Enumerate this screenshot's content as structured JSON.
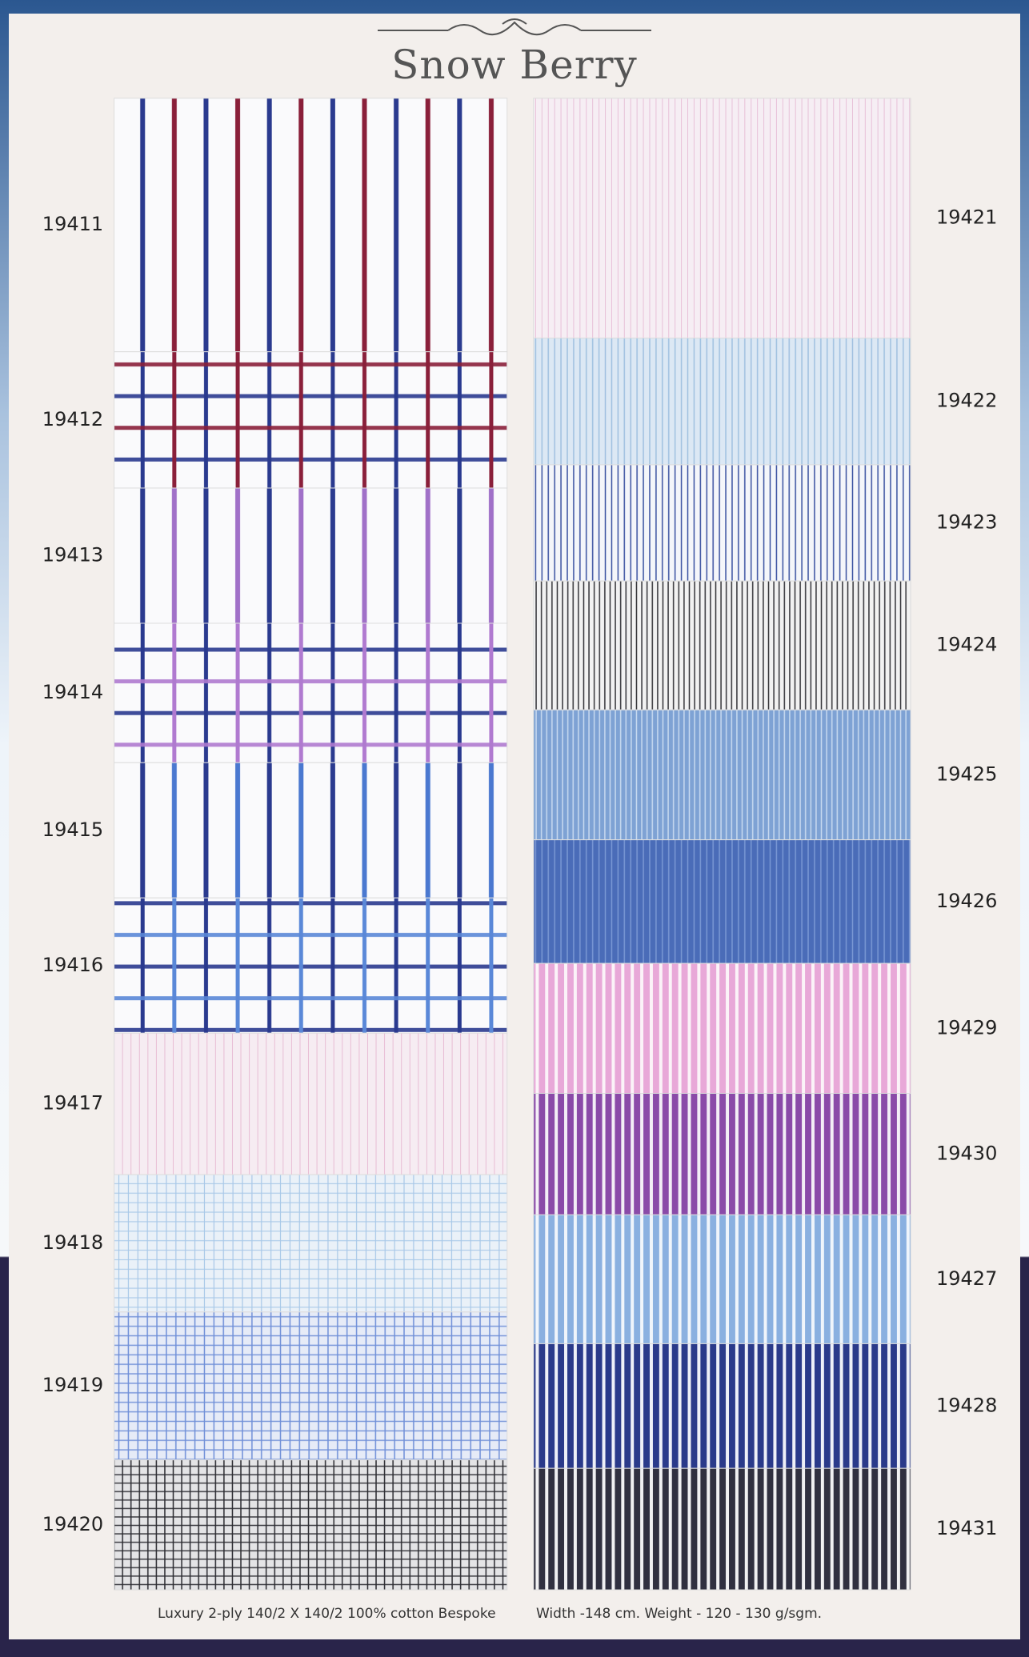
{
  "header": {
    "title": "Snow Berry"
  },
  "columns": [
    {
      "swatches": [
        {
          "code": "19411"
        },
        {
          "code": "19412"
        },
        {
          "code": "19413"
        },
        {
          "code": "19414"
        },
        {
          "code": "19415"
        },
        {
          "code": "19416"
        },
        {
          "code": "19417"
        },
        {
          "code": "19418"
        },
        {
          "code": "19419"
        },
        {
          "code": "19420"
        }
      ]
    },
    {
      "swatches": [
        {
          "code": "19421"
        },
        {
          "code": "19422"
        },
        {
          "code": "19423"
        },
        {
          "code": "19424"
        },
        {
          "code": "19425"
        },
        {
          "code": "19426"
        },
        {
          "code": "19429"
        },
        {
          "code": "19430"
        },
        {
          "code": "19427"
        },
        {
          "code": "19428"
        },
        {
          "code": "19431"
        }
      ]
    }
  ],
  "footer": {
    "composition": "Luxury 2-ply 140/2 X 140/2 100% cotton Bespoke",
    "specs": "Width -148 cm. Weight - 120 - 130 g/sgm."
  }
}
